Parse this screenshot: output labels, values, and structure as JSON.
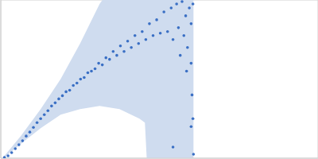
{
  "chart_data": {
    "type": "scatter",
    "x": [
      0.004,
      0.008,
      0.012,
      0.016,
      0.02,
      0.024,
      0.028,
      0.032,
      0.036,
      0.04,
      0.044,
      0.048,
      0.052,
      0.056,
      0.06,
      0.064,
      0.068,
      0.072,
      0.076,
      0.08,
      0.084,
      0.088,
      0.092,
      0.096,
      0.1,
      0.104,
      0.108,
      0.112,
      0.116,
      0.12,
      0.124,
      0.128,
      0.132,
      0.136,
      0.14,
      0.144,
      0.148,
      0.152,
      0.156,
      0.16,
      0.164,
      0.168,
      0.172,
      0.176,
      0.18,
      0.184,
      0.188,
      0.19,
      0.194,
      0.196,
      0.2,
      0.202,
      0.204,
      0.206,
      0.208,
      0.21,
      0.21,
      0.211,
      0.212,
      0.212,
      0.19,
      0.205,
      0.2126,
      0.198,
      0.21
    ],
    "values": [
      0.01,
      0.03,
      0.07,
      0.12,
      0.17,
      0.22,
      0.28,
      0.33,
      0.39,
      0.45,
      0.5,
      0.55,
      0.6,
      0.66,
      0.7,
      0.75,
      0.79,
      0.84,
      0.86,
      0.92,
      0.95,
      1.0,
      1.02,
      1.08,
      1.1,
      1.13,
      1.2,
      1.18,
      1.27,
      1.25,
      1.35,
      1.3,
      1.42,
      1.35,
      1.48,
      1.4,
      1.55,
      1.45,
      1.6,
      1.5,
      1.7,
      1.55,
      1.75,
      1.58,
      1.85,
      1.6,
      1.9,
      1.5,
      1.95,
      1.65,
      1.98,
      1.55,
      1.8,
      1.4,
      1.9,
      1.2,
      1.7,
      0.8,
      0.5,
      1.95,
      0.14,
      1.1,
      0.05,
      1.3,
      0.4
    ],
    "color": "#3a6fc4",
    "marker": "circle",
    "error_band": {
      "x": [
        0.004,
        0.022,
        0.044,
        0.066,
        0.0875,
        0.109,
        0.131,
        0.153,
        0.159,
        0.161,
        0.185,
        0.2126
      ],
      "lower": [
        0.01,
        0.18,
        0.38,
        0.55,
        0.62,
        0.66,
        0.62,
        0.5,
        0.45,
        0.0,
        0.0,
        0.0
      ],
      "upper": [
        0.03,
        0.28,
        0.62,
        1.0,
        1.45,
        1.95,
        2.3,
        2.6,
        2.65,
        2.7,
        2.8,
        3.0
      ],
      "color": "#cfdcef"
    },
    "xlim": [
      0,
      0.35
    ],
    "ylim": [
      0,
      2
    ],
    "xticks": [
      0.1
    ],
    "yticks": [
      1
    ],
    "grid": true,
    "tick_labels": false
  }
}
